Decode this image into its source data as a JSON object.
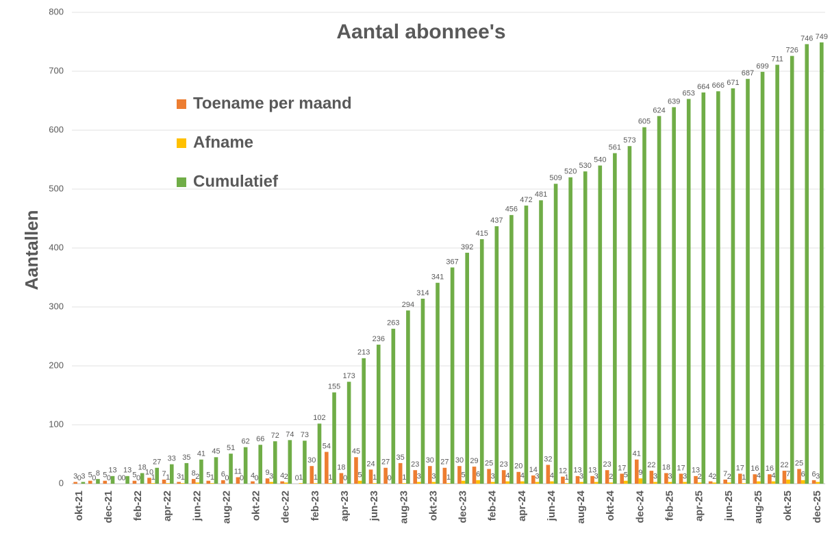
{
  "chart_data": {
    "type": "bar",
    "title": "Aantal abonnee's",
    "y_label": "Aantallen",
    "categories": [
      "okt-21",
      null,
      "dec-21",
      null,
      "feb-22",
      null,
      "apr-22",
      null,
      "jun-22",
      null,
      "aug-22",
      null,
      "okt-22",
      null,
      "dec-22",
      null,
      "feb-23",
      null,
      "apr-23",
      null,
      "jun-23",
      null,
      "aug-23",
      null,
      "okt-23",
      null,
      "dec-23",
      null,
      "feb-24",
      null,
      "apr-24",
      null,
      "jun-24",
      null,
      "aug-24",
      null,
      "okt-24",
      null,
      "dec-24",
      null,
      "feb-25",
      null,
      "apr-25",
      null,
      "jun-25",
      null,
      "aug-25",
      null,
      "okt-25",
      null,
      "dec-25"
    ],
    "series": [
      {
        "name": "Toename per maand",
        "color": "#ed7d31",
        "values": [
          3,
          5,
          5,
          0,
          5,
          10,
          7,
          3,
          8,
          5,
          6,
          11,
          4,
          9,
          4,
          0,
          30,
          54,
          18,
          45,
          24,
          27,
          35,
          23,
          30,
          27,
          30,
          29,
          25,
          23,
          20,
          14,
          32,
          12,
          13,
          13,
          23,
          17,
          41,
          22,
          18,
          17,
          13,
          4,
          7,
          17,
          16,
          16,
          22,
          25,
          6
        ]
      },
      {
        "name": "Afname",
        "color": "#ffc000",
        "values": [
          0,
          0,
          0,
          0,
          0,
          1,
          1,
          1,
          2,
          1,
          0,
          0,
          0,
          3,
          2,
          1,
          1,
          1,
          0,
          5,
          1,
          0,
          1,
          3,
          3,
          1,
          5,
          6,
          3,
          4,
          4,
          3,
          4,
          1,
          3,
          3,
          2,
          5,
          9,
          3,
          3,
          3,
          2,
          2,
          2,
          1,
          4,
          4,
          7,
          6,
          3
        ]
      },
      {
        "name": "Cumulatief",
        "color": "#70ad47",
        "values": [
          3,
          8,
          13,
          13,
          18,
          27,
          33,
          35,
          41,
          45,
          51,
          62,
          66,
          72,
          74,
          73,
          102,
          155,
          173,
          213,
          236,
          263,
          294,
          314,
          341,
          367,
          392,
          415,
          437,
          456,
          472,
          481,
          509,
          520,
          530,
          540,
          561,
          573,
          605,
          624,
          639,
          653,
          664,
          666,
          671,
          687,
          699,
          711,
          726,
          746,
          749
        ]
      }
    ],
    "ylim": [
      0,
      800
    ],
    "yticks": [
      0,
      100,
      200,
      300,
      400,
      500,
      600,
      700,
      800
    ],
    "grid": true,
    "legend": "upper left"
  }
}
